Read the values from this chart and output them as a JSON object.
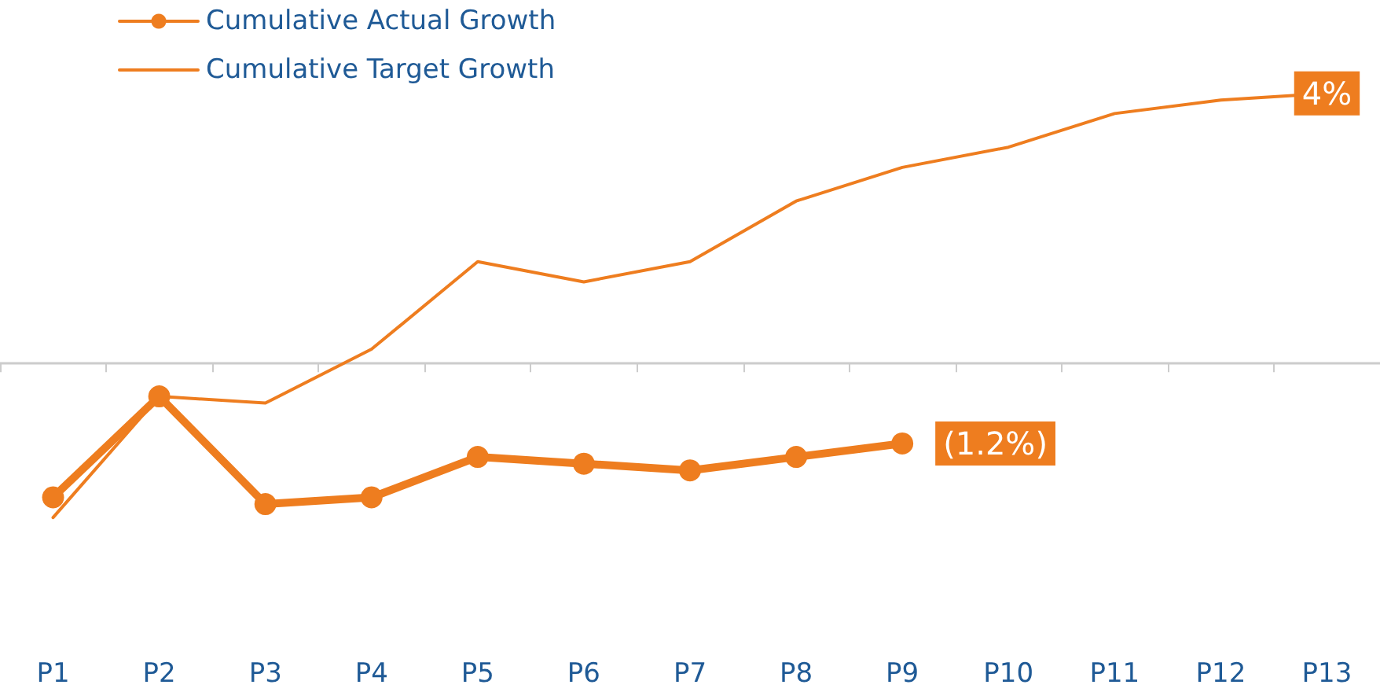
{
  "chart_data": {
    "type": "line",
    "categories": [
      "P1",
      "P2",
      "P3",
      "P4",
      "P5",
      "P6",
      "P7",
      "P8",
      "P9",
      "P10",
      "P11",
      "P12",
      "P13"
    ],
    "series": [
      {
        "name": "Cumulative Actual Growth",
        "color": "#ee7d1f",
        "marker": "circle",
        "line_style": "solid",
        "values": [
          -2.0,
          -0.5,
          -2.1,
          -2.0,
          -1.4,
          -1.5,
          -1.6,
          -1.4,
          -1.2,
          null,
          null,
          null,
          null
        ],
        "value_labels": [
          null,
          null,
          null,
          null,
          null,
          null,
          null,
          null,
          "(1.2%)",
          null,
          null,
          null,
          null
        ]
      },
      {
        "name": "Cumulative Target Growth",
        "color": "#ee7d1f",
        "marker": "none",
        "line_style": "solid",
        "values": [
          -2.3,
          -0.5,
          -0.6,
          0.2,
          1.5,
          1.2,
          1.5,
          2.4,
          2.9,
          3.2,
          3.7,
          3.9,
          4.0
        ],
        "value_labels": [
          null,
          null,
          null,
          null,
          null,
          null,
          null,
          null,
          null,
          null,
          null,
          null,
          "4%"
        ]
      }
    ],
    "legend": "top left"
  }
}
